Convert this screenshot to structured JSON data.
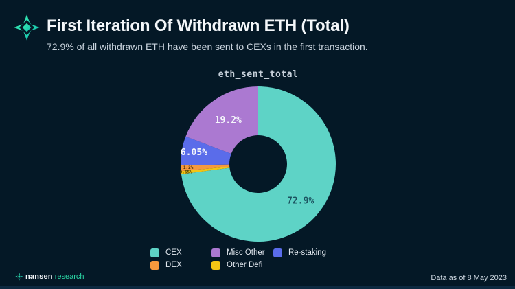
{
  "header": {
    "title": "First Iteration Of Withdrawn ETH (Total)",
    "subtitle": "72.9% of all withdrawn ETH have been sent to CEXs in the first transaction."
  },
  "chart_data": {
    "type": "pie",
    "title": "eth_sent_total",
    "hole_ratio": 0.37,
    "direction": "clockwise",
    "start_angle_deg": 0,
    "slices": [
      {
        "name": "CEX",
        "value": 72.9,
        "label": "72.9%",
        "color": "#5ed3c6",
        "label_color": "#1c5360",
        "label_r": 82,
        "label_size": 13
      },
      {
        "name": "Other Defi",
        "value": 0.65,
        "label": "0.65%",
        "color": "#f3c515",
        "label_color": "#4a3d06",
        "label_r": 106,
        "label_size": 6
      },
      {
        "name": "DEX",
        "value": 1.2,
        "label": "1.2%",
        "color": "#f6993d",
        "label_color": "#4a2c08",
        "label_r": 102,
        "label_size": 6
      },
      {
        "name": "Re-staking",
        "value": 6.05,
        "label": "6.05%",
        "color": "#5a6cea",
        "label_color": "#f4f6fb",
        "label_r": 95,
        "label_size": 13
      },
      {
        "name": "Misc Other",
        "value": 19.2,
        "label": "19.2%",
        "color": "#ab79d1",
        "label_color": "#f4f6fb",
        "label_r": 77,
        "label_size": 13
      }
    ],
    "legend": {
      "position": "bottom",
      "order": [
        "CEX",
        "Misc Other",
        "Re-staking",
        "DEX",
        "Other Defi"
      ]
    }
  },
  "footer": {
    "brand": {
      "name": "nansen",
      "suffix": "research"
    },
    "data_as_of": "Data as of 8 May 2023"
  },
  "colors": {
    "background": "#041826",
    "title_text": "#f4f7fa",
    "subtitle_text": "#c9d3dd",
    "chart_title_text": "#c5cfd9",
    "legend_text": "#e1e7ee",
    "footer_text": "#ccd6e0",
    "brand_teal": "#2bd9a7",
    "logo_gradient_start": "#3cecb0",
    "logo_gradient_end": "#0fc0ae"
  }
}
